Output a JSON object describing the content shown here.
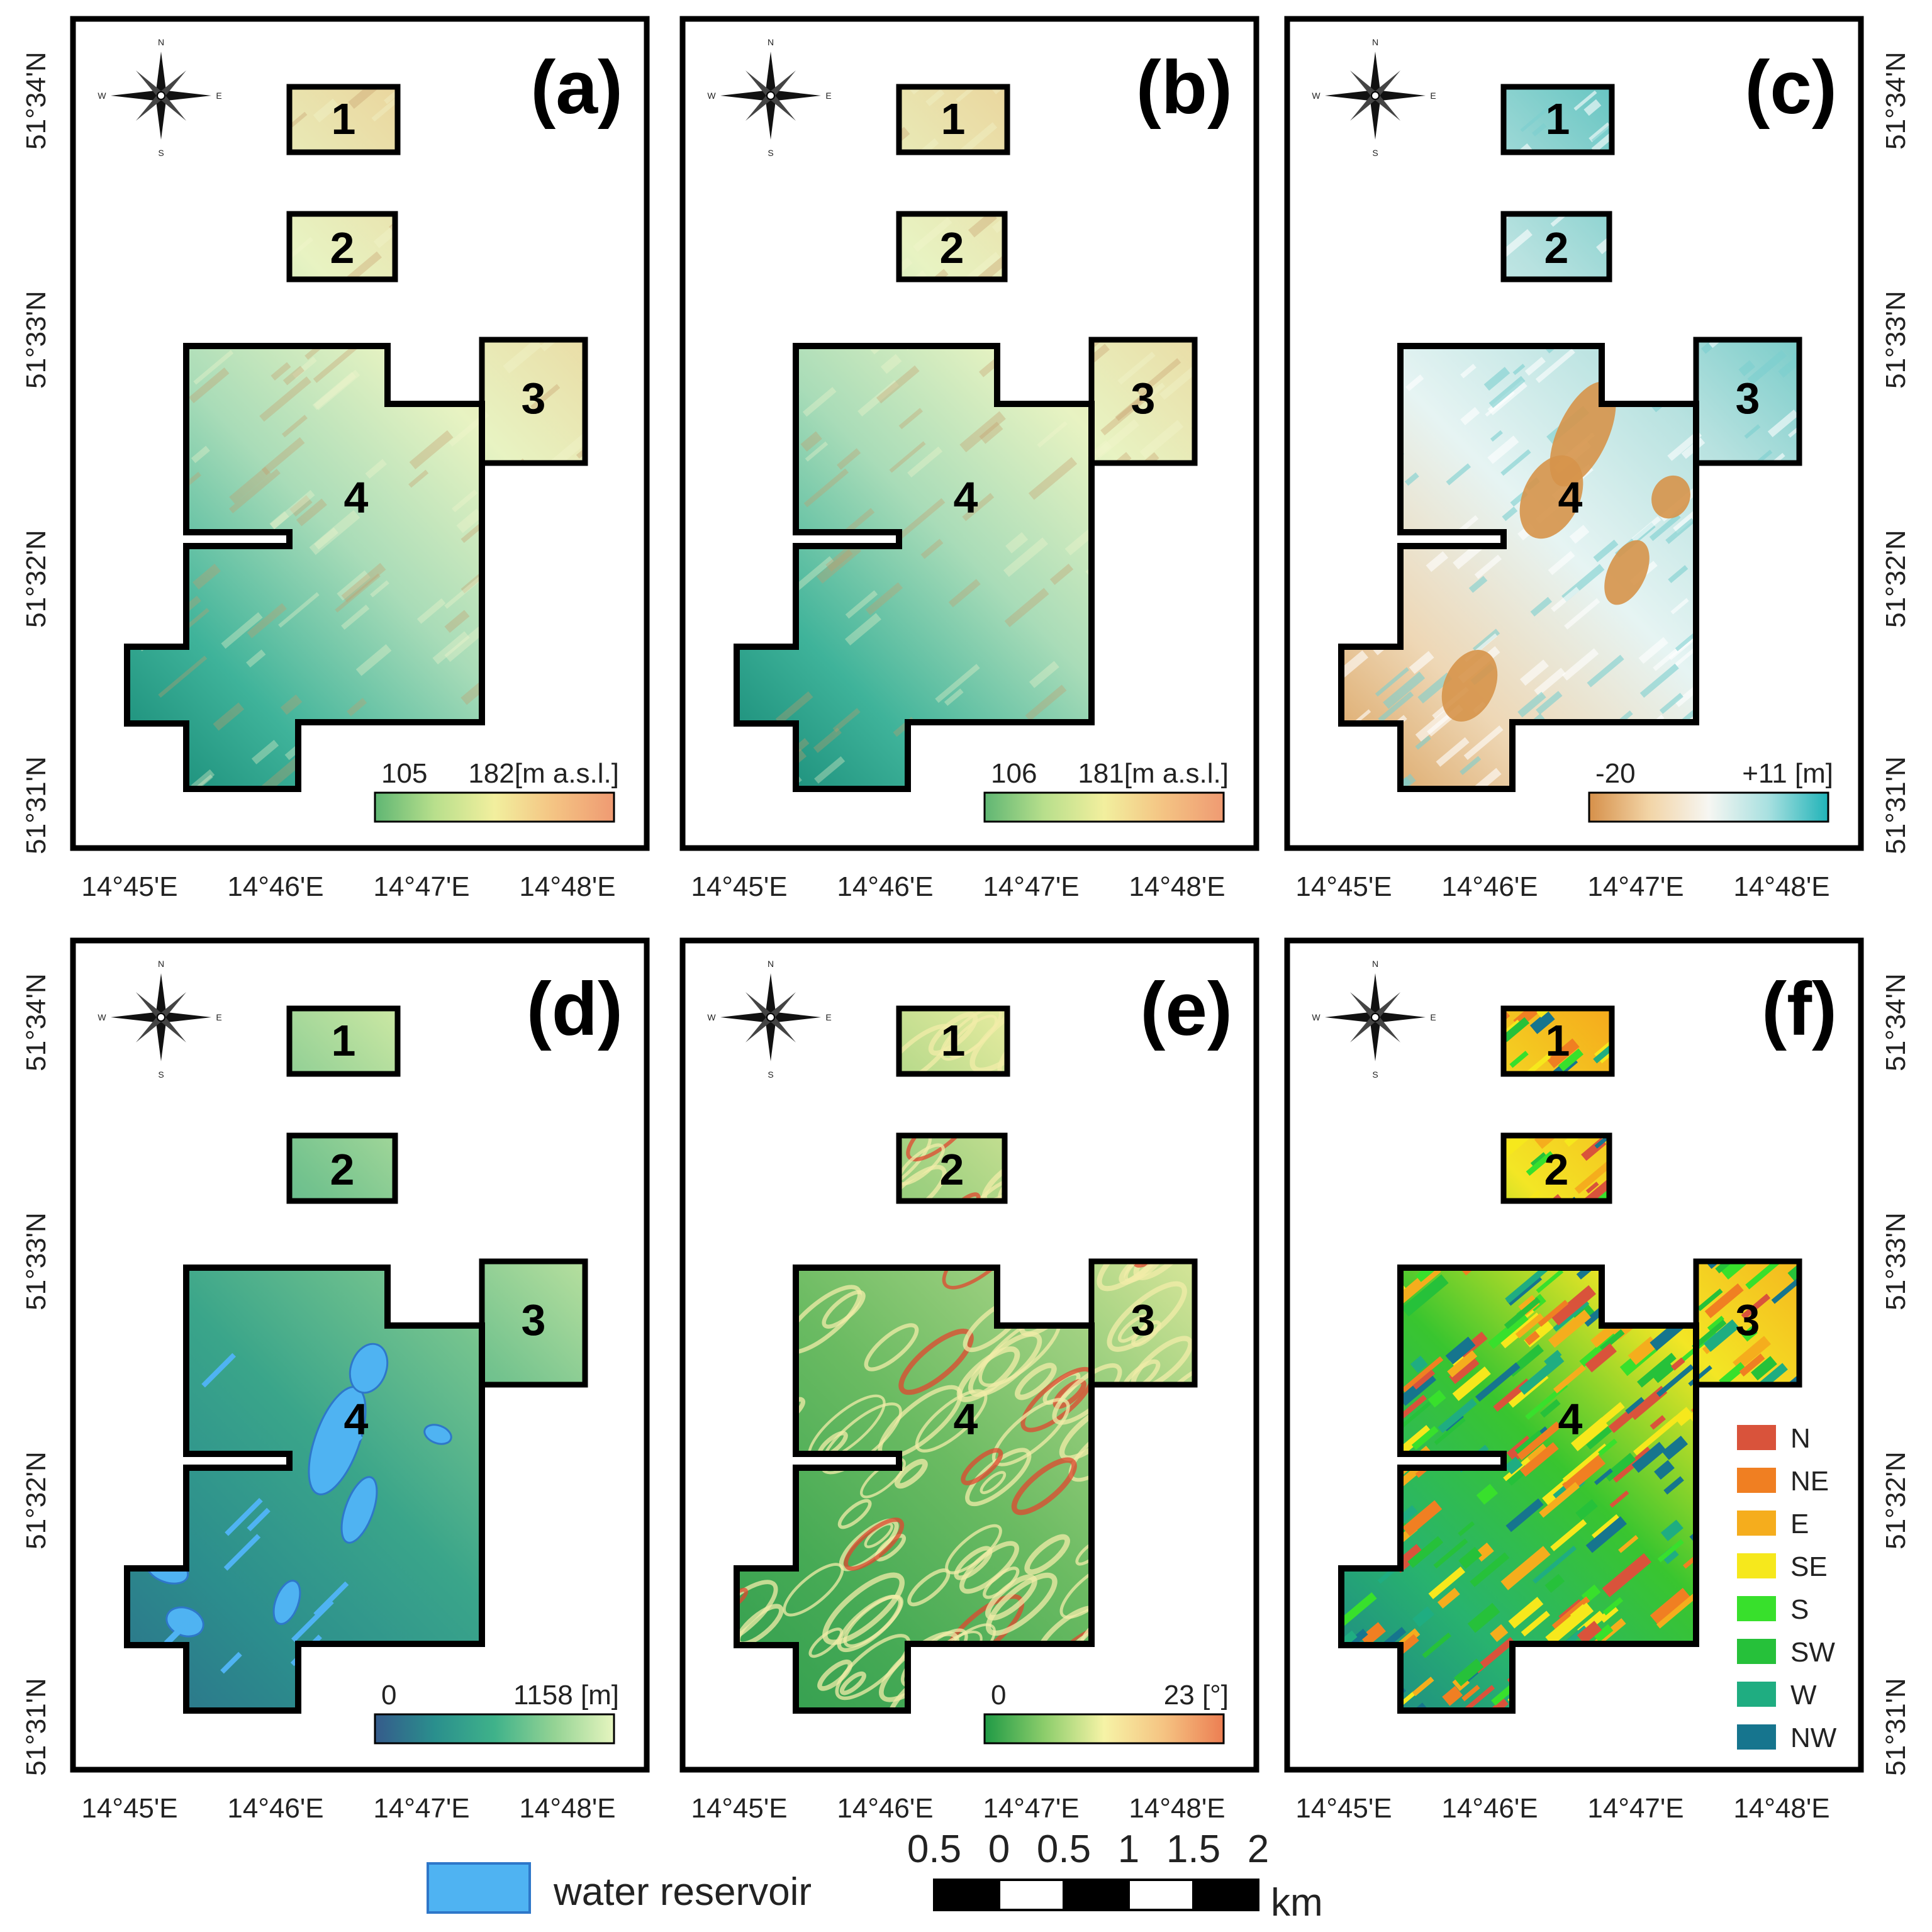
{
  "panels": [
    {
      "id": "a",
      "label": "(a)",
      "gradient": [
        "#0f8270",
        "#3fb39a",
        "#a9dcb8",
        "#e8f3c2",
        "#ead8a0",
        "#d7a874"
      ],
      "colorbar": {
        "min_label": "105",
        "max_label": "182[m a.s.l.]",
        "stops": [
          "#5fb673",
          "#b8df8c",
          "#f2ef9e",
          "#f4c383",
          "#ef9a72"
        ]
      },
      "extra": "none"
    },
    {
      "id": "b",
      "label": "(b)",
      "gradient": [
        "#0f8270",
        "#3fb39a",
        "#a9dcb8",
        "#e8f3c2",
        "#ead8a0",
        "#d7a874"
      ],
      "colorbar": {
        "min_label": "106",
        "max_label": "181[m a.s.l.]",
        "stops": [
          "#5fb673",
          "#b8df8c",
          "#f2ef9e",
          "#f4c383",
          "#ef9a72"
        ]
      },
      "extra": "none"
    },
    {
      "id": "c",
      "label": "(c)",
      "gradient": [
        "#d79a52",
        "#eed7b5",
        "#e6f4f3",
        "#b8e2e0",
        "#6cc7c4",
        "#22a5a8"
      ],
      "colorbar": {
        "min_label": "-20",
        "max_label": "+11 [m]",
        "stops": [
          "#d6904a",
          "#f2d4a6",
          "#f6f6f2",
          "#a8e0e0",
          "#20b3b8"
        ]
      },
      "extra": "diff"
    },
    {
      "id": "d",
      "label": "(d)",
      "gradient": [
        "#2c6f8a",
        "#2c8e8d",
        "#3aa58a",
        "#74c38e",
        "#c7e6a2",
        "#eaf6c8"
      ],
      "colorbar": {
        "min_label": "0",
        "max_label": "1158 [m]",
        "stops": [
          "#355b8b",
          "#2a8f8d",
          "#3fb28a",
          "#94d394",
          "#e6f5bf"
        ]
      },
      "extra": "water"
    },
    {
      "id": "e",
      "label": "(e)",
      "gradient": [
        "#2f9c4f",
        "#46aa55",
        "#6bbb62",
        "#9ed080",
        "#e3ea9e",
        "#f2c27a"
      ],
      "colorbar": {
        "min_label": "0",
        "max_label": "23 [°]",
        "stops": [
          "#1f9a45",
          "#8ccd6b",
          "#f6f3a6",
          "#f5c382",
          "#ec7e52"
        ]
      },
      "extra": "slope"
    },
    {
      "id": "f",
      "label": "(f)",
      "gradient": [
        "#1c7e8c",
        "#28b36e",
        "#39c52f",
        "#f3e625",
        "#f5ad1d",
        "#e9762a"
      ],
      "colorbar": null,
      "extra": "aspect"
    }
  ],
  "area_numbers": [
    "1",
    "2",
    "3",
    "4"
  ],
  "lat_labels": [
    "51°34'N",
    "51°33'N",
    "51°32'N",
    "51°31'N"
  ],
  "lon_labels": [
    "14°45'E",
    "14°46'E",
    "14°47'E",
    "14°48'E"
  ],
  "compass_letters": {
    "n": "N",
    "s": "S",
    "e": "E",
    "w": "W"
  },
  "aspect_legend": [
    {
      "label": "N",
      "color": "#d9533b"
    },
    {
      "label": "NE",
      "color": "#f07f22"
    },
    {
      "label": "E",
      "color": "#f5ad1d"
    },
    {
      "label": "SE",
      "color": "#f6e81c"
    },
    {
      "label": "S",
      "color": "#38e02c"
    },
    {
      "label": "SW",
      "color": "#26c13a"
    },
    {
      "label": "W",
      "color": "#1fad81"
    },
    {
      "label": "NW",
      "color": "#16758e"
    }
  ],
  "water_legend": {
    "label": "water reservoir",
    "color": "#4fb3f2"
  },
  "scale_bar": {
    "labels": [
      "0.5",
      "0",
      "0.5",
      "1",
      "1.5",
      "2"
    ],
    "unit": "km"
  }
}
